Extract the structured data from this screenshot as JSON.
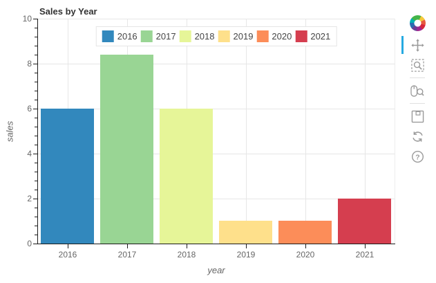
{
  "title": "Sales by Year",
  "chart_data": {
    "type": "bar",
    "title": "Sales by Year",
    "xlabel": "year",
    "ylabel": "sales",
    "categories": [
      "2016",
      "2017",
      "2018",
      "2019",
      "2020",
      "2021"
    ],
    "values": [
      6,
      8.4,
      6,
      1,
      1,
      2
    ],
    "bar_colors": [
      "#3288bd",
      "#99d594",
      "#e6f598",
      "#fee08b",
      "#fc8d59",
      "#d53e4f"
    ],
    "ylim": [
      0,
      10
    ],
    "yticks": [
      0,
      2,
      4,
      6,
      8,
      10
    ],
    "minor_ticks_per_major": 4,
    "grid": true,
    "grid_color": "#e6e6e6",
    "bar_width_fraction": 0.9,
    "legend_position": "top-center",
    "legend_entries": [
      "2016",
      "2017",
      "2018",
      "2019",
      "2020",
      "2021"
    ]
  },
  "toolbar": {
    "logo_icon": "bokeh-logo",
    "active_tool": "pan",
    "active_indicator_color": "#26aae1",
    "icon_color": "#9b9b9b",
    "tools": [
      {
        "name": "pan",
        "icon": "pan-icon",
        "active": true,
        "separator_after": false
      },
      {
        "name": "box-zoom",
        "icon": "box-zoom-icon",
        "active": false,
        "separator_after": true
      },
      {
        "name": "wheel-zoom",
        "icon": "wheel-zoom-icon",
        "active": false,
        "separator_after": true
      },
      {
        "name": "save",
        "icon": "save-icon",
        "active": false,
        "separator_after": false
      },
      {
        "name": "reset",
        "icon": "reset-icon",
        "active": false,
        "separator_after": false
      },
      {
        "name": "help",
        "icon": "help-icon",
        "active": false,
        "separator_after": false
      }
    ]
  },
  "colors": {
    "axis_line": "#1a1a1a",
    "tick_label": "#666666",
    "title_text": "#323232",
    "legend_border": "#e5e5e5"
  }
}
